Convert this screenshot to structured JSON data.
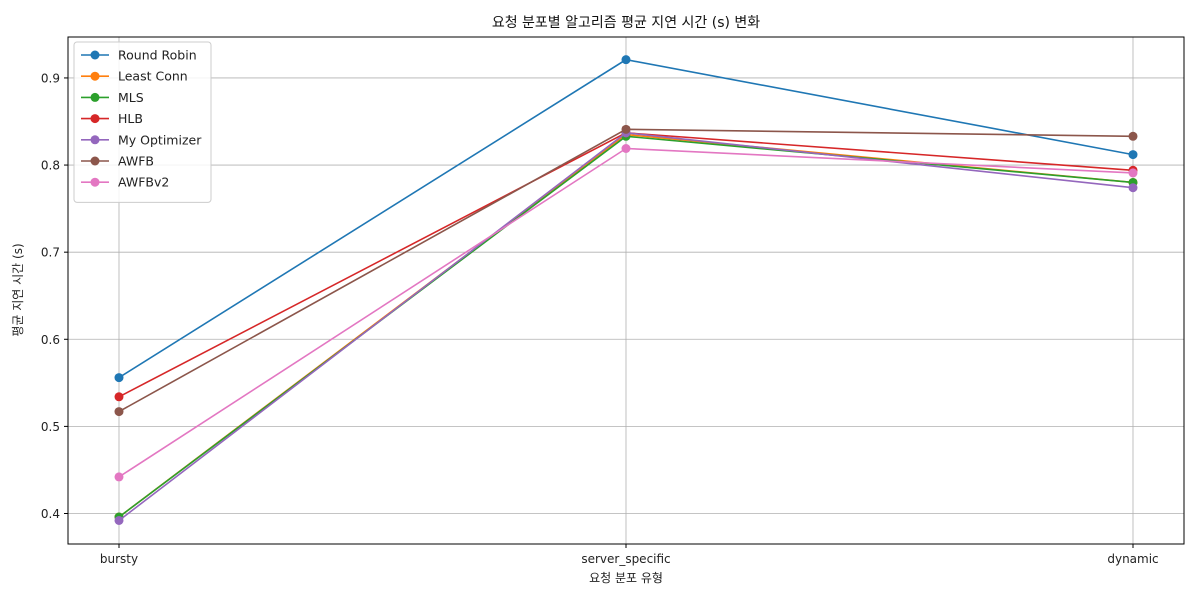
{
  "chart_data": {
    "type": "line",
    "title": "요청 분포별 알고리즘 평균 지연 시간 (s) 변화",
    "xlabel": "요청 분포 유형",
    "ylabel": "평균 지연 시간 (s)",
    "categories": [
      "bursty",
      "server_specific",
      "dynamic"
    ],
    "ylim": [
      0.365,
      0.947
    ],
    "yticks": [
      0.4,
      0.5,
      0.6,
      0.7,
      0.8,
      0.9
    ],
    "ytick_labels": [
      "0.4",
      "0.5",
      "0.6",
      "0.7",
      "0.8",
      "0.9"
    ],
    "grid": true,
    "legend_position": "top-left",
    "series": [
      {
        "name": "Round Robin",
        "color": "#1f77b4",
        "values": [
          0.556,
          0.921,
          0.812
        ]
      },
      {
        "name": "Least Conn",
        "color": "#ff7f0e",
        "values": [
          0.396,
          0.835,
          0.78
        ]
      },
      {
        "name": "MLS",
        "color": "#2ca02c",
        "values": [
          0.396,
          0.833,
          0.78
        ]
      },
      {
        "name": "HLB",
        "color": "#d62728",
        "values": [
          0.534,
          0.837,
          0.794
        ]
      },
      {
        "name": "My Optimizer",
        "color": "#9467bd",
        "values": [
          0.392,
          0.837,
          0.774
        ]
      },
      {
        "name": "AWFB",
        "color": "#8c564b",
        "values": [
          0.517,
          0.841,
          0.833
        ]
      },
      {
        "name": "AWFBv2",
        "color": "#e377c2",
        "values": [
          0.442,
          0.819,
          0.791
        ]
      }
    ]
  }
}
